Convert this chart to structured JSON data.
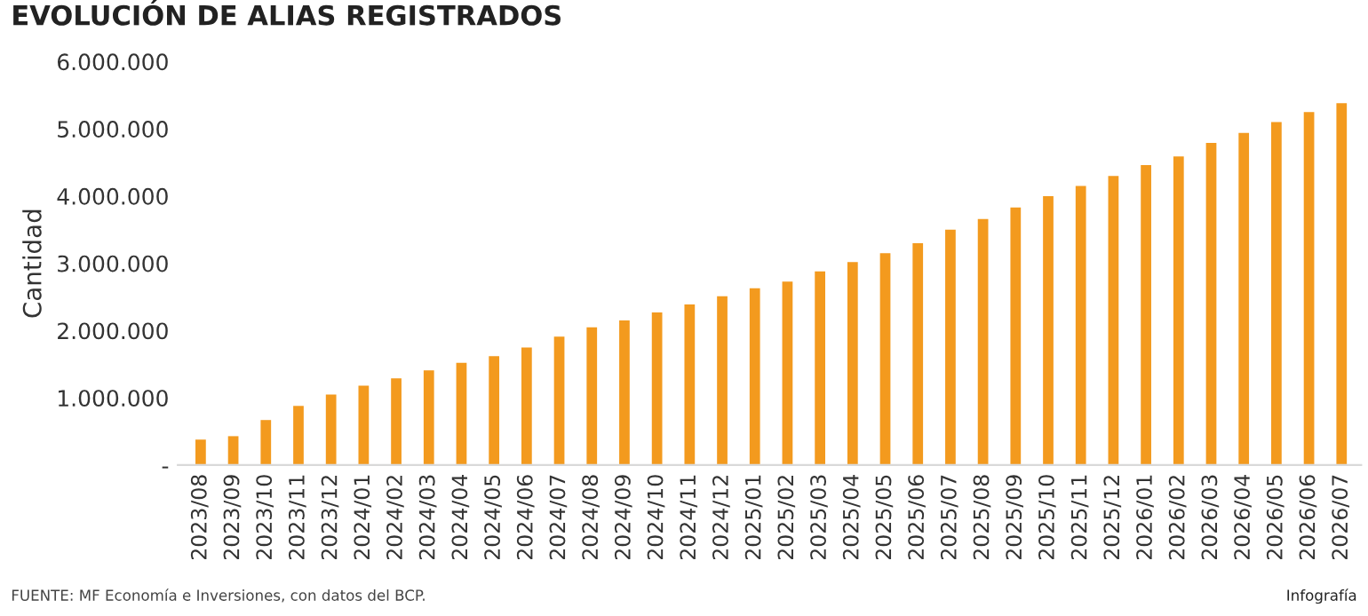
{
  "chart_data": {
    "type": "bar",
    "title": "EVOLUCIÓN DE ALIAS REGISTRADOS",
    "ylabel": "Cantidad",
    "categories": [
      "2023/08",
      "2023/09",
      "2023/10",
      "2023/11",
      "2023/12",
      "2024/01",
      "2024/02",
      "2024/03",
      "2024/04",
      "2024/05",
      "2024/06",
      "2024/07",
      "2024/08",
      "2024/09",
      "2024/10",
      "2024/11",
      "2024/12",
      "2025/01",
      "2025/02",
      "2025/03",
      "2025/04",
      "2025/05",
      "2025/06",
      "2025/07",
      "2025/08",
      "2025/09",
      "2025/10",
      "2025/11",
      "2025/12",
      "2026/01",
      "2026/02",
      "2026/03",
      "2026/04",
      "2026/05",
      "2026/06",
      "2026/07"
    ],
    "values": [
      380000,
      430000,
      670000,
      880000,
      1050000,
      1180000,
      1290000,
      1410000,
      1520000,
      1620000,
      1750000,
      1910000,
      2050000,
      2150000,
      2270000,
      2390000,
      2510000,
      2630000,
      2730000,
      2880000,
      3020000,
      3150000,
      3300000,
      3500000,
      3660000,
      3830000,
      4000000,
      4150000,
      4300000,
      4460000,
      4590000,
      4790000,
      4940000,
      5100000,
      5250000,
      5380000
    ],
    "color": "#f39a1e",
    "ylim": [
      0,
      6000000
    ],
    "yticks": [
      {
        "value": 0,
        "label": "-"
      },
      {
        "value": 1000000,
        "label": "1.000.000"
      },
      {
        "value": 2000000,
        "label": "2.000.000"
      },
      {
        "value": 3000000,
        "label": "3.000.000"
      },
      {
        "value": 4000000,
        "label": "4.000.000"
      },
      {
        "value": 5000000,
        "label": "5.000.000"
      },
      {
        "value": 6000000,
        "label": "6.000.000"
      }
    ],
    "grid": false,
    "legend": false,
    "annotations": [
      "FUENTE: MF Economía e Inversiones, con datos del BCP.",
      "Infografía"
    ]
  }
}
